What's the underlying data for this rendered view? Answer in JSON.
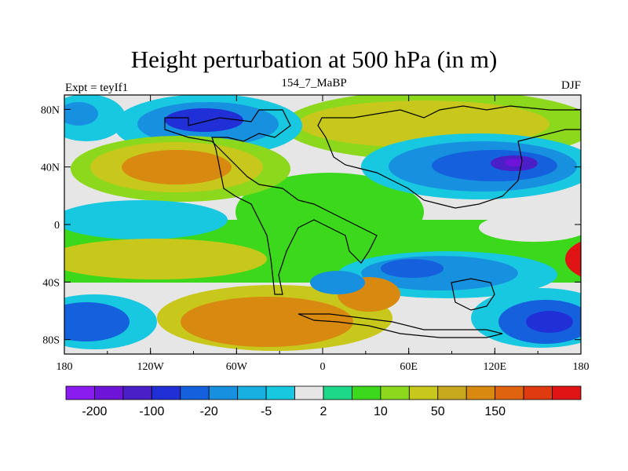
{
  "chart_data": {
    "type": "heatmap",
    "title": "Height perturbation at 500 hPa (in m)",
    "left_label": "Expt = teyIf1",
    "center_label": "154_7_MaBP",
    "right_label": "DJF",
    "x_ticks": [
      "180",
      "120W",
      "60W",
      "0",
      "60E",
      "120E",
      "180"
    ],
    "x_range": [
      -180,
      180
    ],
    "y_ticks": [
      "80N",
      "40N",
      "0",
      "40S",
      "80S"
    ],
    "y_tick_values": [
      80,
      40,
      0,
      -40,
      -80
    ],
    "y_range": [
      -90,
      90
    ],
    "colorbar": {
      "colors": [
        "#8a1cf0",
        "#6e14d8",
        "#4a1fc8",
        "#2030d6",
        "#1560dc",
        "#1890e0",
        "#18b0e0",
        "#18c8e0",
        "#e6e6e6",
        "#1ed88a",
        "#3cd81c",
        "#8cd81c",
        "#c8c81c",
        "#c8a81c",
        "#d88a10",
        "#e06410",
        "#e03a10",
        "#e01414"
      ],
      "labels": [
        "-200",
        "-100",
        "-20",
        "-5",
        "2",
        "10",
        "50",
        "150"
      ],
      "label_boundaries": [
        1,
        3,
        5,
        7,
        9,
        11,
        13,
        15
      ]
    },
    "field_features": [
      {
        "region": "NH North Pacific/Canada",
        "sign": "negative",
        "min_class": -100
      },
      {
        "region": "NH eastern Pacific 40N",
        "sign": "positive",
        "max_class": 150
      },
      {
        "region": "NH Eurasia 60-80N",
        "sign": "positive",
        "max_class": 50
      },
      {
        "region": "NH East Asia / NW Pacific 40N",
        "sign": "negative",
        "min_class": -200
      },
      {
        "region": "Equatorial Pacific",
        "sign": "negative",
        "min_class": -20
      },
      {
        "region": "SH 60-80S Pacific",
        "sign": "negative",
        "min_class": -100
      },
      {
        "region": "SH 60-80S Atlantic/Indian",
        "sign": "positive",
        "max_class": 150
      },
      {
        "region": "SH Indian Ocean 40S",
        "sign": "negative",
        "min_class": -20
      }
    ]
  }
}
